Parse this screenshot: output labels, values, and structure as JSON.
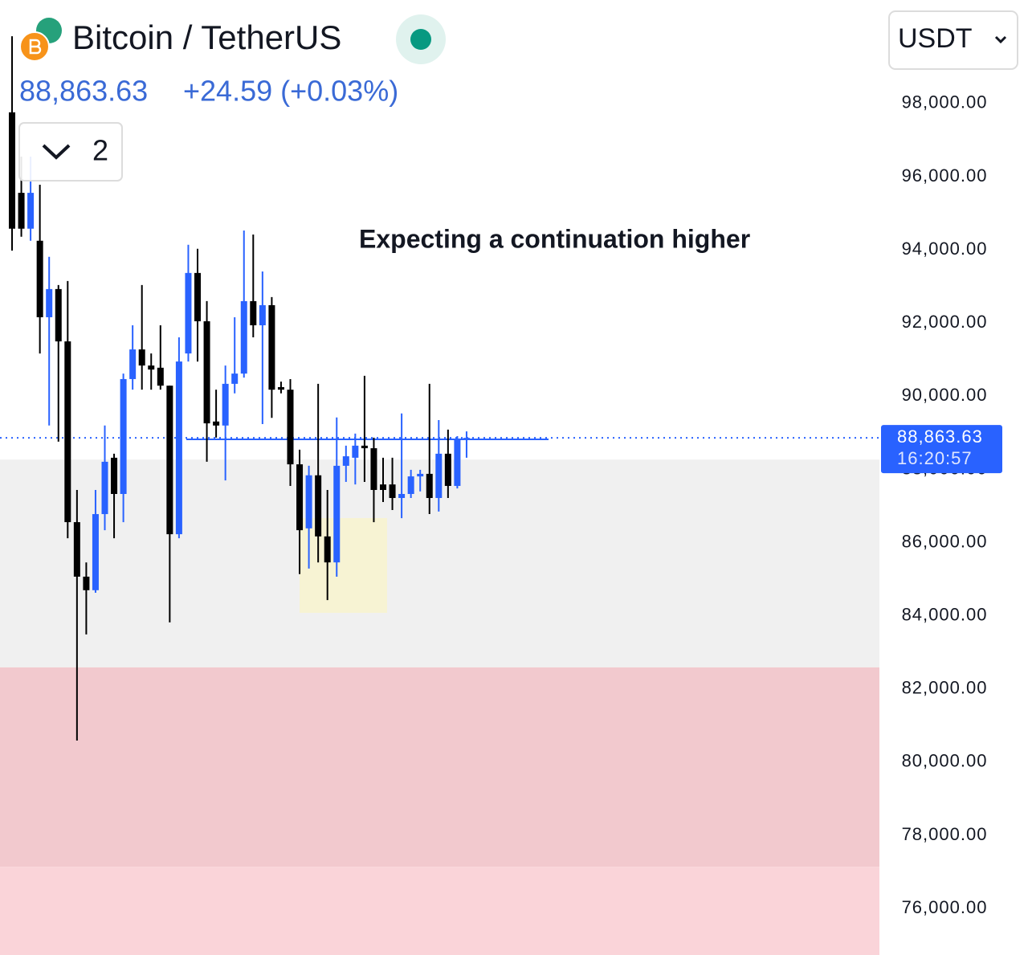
{
  "chart_data": {
    "type": "candlestick",
    "title": "Bitcoin / TetherUS",
    "change": "+24.59 (+0.03%)",
    "interval_count": "2",
    "currency": "USDT",
    "annotation": "Expecting a continuation higher",
    "countdown": "16:20:57",
    "last_price": {
      "value": 88863.63,
      "label": "88,863.63"
    },
    "up_color": "#2962ff",
    "down_color": "#000000",
    "categories": [
      null,
      null,
      null,
      null,
      null,
      null,
      null,
      null,
      null,
      null,
      null,
      null,
      null,
      null,
      null,
      null,
      null,
      null,
      null,
      null,
      null,
      null,
      null,
      null,
      null,
      null,
      null,
      null,
      null,
      null,
      null,
      null,
      null,
      null,
      null,
      null,
      null,
      null,
      null,
      null,
      null,
      null,
      null,
      null,
      null,
      null,
      null,
      null,
      null,
      null
    ],
    "open": [
      97760,
      95560,
      94580,
      94250,
      92160,
      92930,
      91500,
      86560,
      85070,
      84700,
      86780,
      88320,
      87330,
      90470,
      91280,
      90840,
      90780,
      90290,
      86230,
      91170,
      93370,
      92050,
      89310,
      89200,
      90340,
      90620,
      92600,
      91940,
      92490,
      90250,
      90180,
      88140,
      86390,
      87840,
      86170,
      85460,
      88100,
      88320,
      88650,
      88580,
      87590,
      87590,
      87220,
      87330,
      87810,
      87880,
      87220,
      88430,
      87550,
      88839.04
    ],
    "high": [
      99840,
      96550,
      96550,
      95780,
      93810,
      93040,
      93150,
      87440,
      85460,
      87440,
      89200,
      88430,
      90620,
      91940,
      93040,
      91170,
      91940,
      90290,
      91610,
      94140,
      94030,
      92600,
      90180,
      90840,
      92160,
      94530,
      94420,
      93410,
      92710,
      90400,
      90470,
      88540,
      88100,
      90340,
      87440,
      89420,
      88650,
      88980,
      90560,
      88870,
      88320,
      88320,
      89530,
      87990,
      87990,
      90340,
      89350,
      89090,
      88910,
      89040
    ],
    "low": [
      93980,
      94360,
      94250,
      91170,
      89200,
      88760,
      86120,
      80590,
      83490,
      84630,
      86340,
      86120,
      86560,
      90180,
      90180,
      90180,
      90180,
      83820,
      86120,
      90950,
      90950,
      88210,
      88870,
      87700,
      90080,
      90510,
      91610,
      89240,
      89410,
      90080,
      87550,
      85140,
      85290,
      85460,
      84430,
      85070,
      87660,
      87590,
      87660,
      86560,
      87110,
      86890,
      86670,
      87220,
      87400,
      86780,
      86850,
      87220,
      87480,
      88320
    ],
    "close": [
      94580,
      94580,
      95560,
      92160,
      92930,
      91500,
      86560,
      85070,
      84700,
      86780,
      88210,
      87330,
      90470,
      91280,
      90840,
      90730,
      90290,
      86230,
      90950,
      93370,
      92050,
      89260,
      89200,
      90340,
      90620,
      92600,
      91940,
      92490,
      90180,
      90180,
      88140,
      86340,
      87840,
      86170,
      85460,
      88100,
      88360,
      88650,
      88580,
      87440,
      87440,
      87220,
      87330,
      87810,
      87880,
      87220,
      88430,
      87550,
      88820,
      88863.63
    ],
    "zones": [
      {
        "ylim": [
          82590,
          88270
        ],
        "color": "#f0f0f0"
      },
      {
        "ylim": [
          77140,
          82590
        ],
        "color": "#f2c9ce"
      },
      {
        "ylim": [
          74730,
          77140
        ],
        "color": "#fad4d9"
      }
    ],
    "ylim": [
      74730,
      100830
    ],
    "yticks": [
      {
        "value": 76000,
        "label": "76,000.00"
      },
      {
        "value": 78000,
        "label": "78,000.00"
      },
      {
        "value": 80000,
        "label": "80,000.00"
      },
      {
        "value": 82000,
        "label": "82,000.00"
      },
      {
        "value": 84000,
        "label": "84,000.00"
      },
      {
        "value": 86000,
        "label": "86,000.00"
      },
      {
        "value": 88000,
        "label": "88,000.00"
      },
      {
        "value": 90000,
        "label": "90,000.00"
      },
      {
        "value": 92000,
        "label": "92,000.00"
      },
      {
        "value": 94000,
        "label": "94,000.00"
      },
      {
        "value": 96000,
        "label": "96,000.00"
      },
      {
        "value": 98000,
        "label": "98,000.00"
      }
    ]
  }
}
